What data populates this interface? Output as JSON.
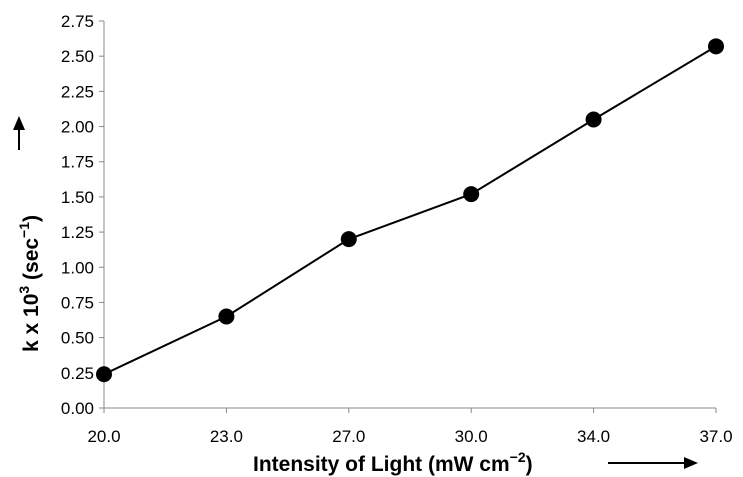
{
  "chart_data": {
    "type": "line",
    "title": "",
    "categories": [
      "20.0",
      "23.0",
      "27.0",
      "30.0",
      "34.0",
      "37.0"
    ],
    "series": [
      {
        "values": [
          0.24,
          0.65,
          1.2,
          1.52,
          2.05,
          2.57
        ]
      }
    ],
    "ylim": [
      0,
      2.75
    ],
    "y_ticks": [
      "0.00",
      "0.25",
      "0.50",
      "0.75",
      "1.00",
      "1.25",
      "1.50",
      "1.75",
      "2.00",
      "2.25",
      "2.50",
      "2.75"
    ],
    "xlabel": {
      "main": "Intensity of Light (mW cm",
      "sup": "−2",
      "end": ")"
    },
    "ylabel": {
      "main": "k x 10",
      "sup1": "3",
      "mid": " (sec",
      "sup2": "−1",
      "end": ")"
    },
    "grid": false,
    "legend": "none",
    "marker": "filled-circle",
    "line_color": "#000000",
    "marker_color": "#000000"
  }
}
